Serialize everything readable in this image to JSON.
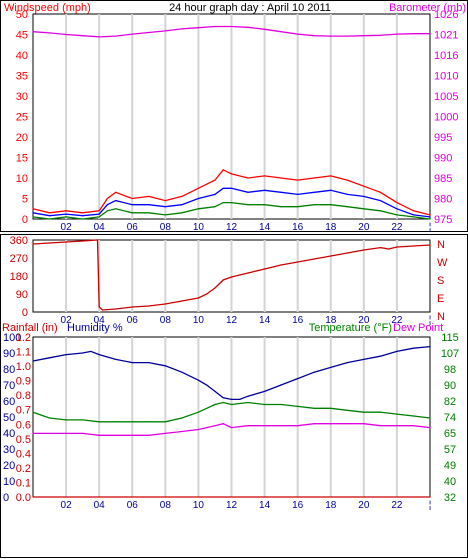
{
  "chart_data": [
    {
      "type": "line",
      "title": "24 hour graph day : April 10 2011",
      "ylabel_left": "Windspeed (mph)",
      "ylabel_right": "Barometer (mb)",
      "x_ticks": [
        "02",
        "04",
        "06",
        "08",
        "10",
        "12",
        "14",
        "16",
        "18",
        "20",
        "22",
        "¦"
      ],
      "x_range": [
        0,
        24
      ],
      "left_axis": {
        "range": [
          0,
          50
        ],
        "ticks": [
          "0",
          "5",
          "10",
          "15",
          "20",
          "25",
          "30",
          "35",
          "40",
          "45",
          "50"
        ]
      },
      "right_axis": {
        "range": [
          975,
          1026
        ],
        "ticks": [
          "975",
          "980",
          "985",
          "990",
          "995",
          "1000",
          "1005",
          "1010",
          "1016",
          "1021",
          "1026"
        ]
      },
      "grid": true,
      "series": [
        {
          "axis": "right",
          "color": "#e000e0",
          "x": [
            0,
            1,
            2,
            3,
            4,
            5,
            6,
            7,
            8,
            9,
            10,
            11,
            12,
            13,
            14,
            15,
            16,
            17,
            18,
            19,
            20,
            21,
            22,
            23,
            24
          ],
          "values": [
            1021.6,
            1021.3,
            1020.9,
            1020.6,
            1020.3,
            1020.5,
            1021.0,
            1021.4,
            1021.8,
            1022.3,
            1022.6,
            1022.9,
            1022.9,
            1022.7,
            1022.2,
            1021.6,
            1021.0,
            1020.6,
            1020.5,
            1020.5,
            1020.6,
            1020.7,
            1021.0,
            1021.1,
            1021.1
          ]
        },
        {
          "axis": "left",
          "color": "#ff0000",
          "x": [
            0,
            1,
            2,
            3,
            4,
            4.5,
            5,
            6,
            7,
            8,
            9,
            10,
            11,
            11.5,
            12,
            13,
            14,
            15,
            16,
            17,
            18,
            19,
            20,
            21,
            22,
            23,
            24
          ],
          "values": [
            2.5,
            1.5,
            2.0,
            1.5,
            2.0,
            5.0,
            6.5,
            5.0,
            5.5,
            4.5,
            5.5,
            7.5,
            9.5,
            12.0,
            11.0,
            10.0,
            10.5,
            10.0,
            9.5,
            10.0,
            10.5,
            9.5,
            8.0,
            6.5,
            4.0,
            2.0,
            1.0
          ]
        },
        {
          "axis": "left",
          "color": "#0000ff",
          "x": [
            0,
            1,
            2,
            3,
            4,
            4.5,
            5,
            6,
            7,
            8,
            9,
            10,
            11,
            11.5,
            12,
            13,
            14,
            15,
            16,
            17,
            18,
            19,
            20,
            21,
            22,
            23,
            24
          ],
          "values": [
            1.5,
            0.8,
            1.2,
            0.8,
            1.2,
            3.5,
            4.5,
            3.5,
            3.5,
            3.0,
            3.5,
            5.0,
            6.0,
            7.5,
            7.5,
            6.5,
            7.0,
            6.5,
            6.0,
            6.5,
            7.0,
            6.0,
            5.5,
            4.5,
            2.5,
            1.0,
            0.5
          ]
        },
        {
          "axis": "left",
          "color": "#008000",
          "x": [
            0,
            1,
            2,
            3,
            4,
            4.5,
            5,
            6,
            7,
            8,
            9,
            10,
            11,
            11.5,
            12,
            13,
            14,
            15,
            16,
            17,
            18,
            19,
            20,
            21,
            22,
            23,
            24
          ],
          "values": [
            0.5,
            0.0,
            0.5,
            0.0,
            0.5,
            2.0,
            2.5,
            1.5,
            1.5,
            1.0,
            1.5,
            2.5,
            3.0,
            4.0,
            4.0,
            3.5,
            3.5,
            3.0,
            3.0,
            3.5,
            3.5,
            3.0,
            2.5,
            2.0,
            1.0,
            0.5,
            0.0
          ]
        }
      ]
    },
    {
      "type": "line",
      "title": "",
      "x_ticks": [
        "02",
        "04",
        "06",
        "08",
        "10",
        "12",
        "14",
        "16",
        "18",
        "20",
        "22",
        "¦"
      ],
      "x_range": [
        0,
        24
      ],
      "left_axis": {
        "range": [
          0,
          360
        ],
        "ticks": [
          "0",
          "90",
          "180",
          "270",
          "360"
        ]
      },
      "right_labels": [
        "N",
        "W",
        "S",
        "E",
        "N"
      ],
      "grid": true,
      "series": [
        {
          "axis": "left",
          "color": "#cc0000",
          "x": [
            0,
            1,
            2,
            3,
            3.9,
            4.0,
            4.2,
            5,
            6,
            7,
            8,
            9,
            10,
            10.5,
            11,
            11.5,
            12,
            13,
            14,
            15,
            16,
            17,
            18,
            19,
            20,
            21,
            21.5,
            22,
            23,
            24
          ],
          "values": [
            340,
            345,
            350,
            355,
            360,
            25,
            10,
            15,
            25,
            30,
            40,
            55,
            70,
            90,
            120,
            160,
            175,
            195,
            215,
            235,
            250,
            265,
            280,
            295,
            310,
            322,
            315,
            325,
            330,
            335
          ]
        }
      ]
    },
    {
      "type": "line",
      "title": "",
      "ylabel_left_1": "Rainfall (in)",
      "ylabel_left_2": "Humidity %",
      "ylabel_right_1": "Temperature (°F)",
      "ylabel_right_2": "Dew Point",
      "x_ticks": [
        "02",
        "04",
        "06",
        "08",
        "10",
        "12",
        "14",
        "16",
        "18",
        "20",
        "22",
        "¦"
      ],
      "x_range": [
        0,
        24
      ],
      "rain_axis": {
        "range": [
          0,
          1.2
        ],
        "ticks": [
          "0.0",
          "0.1",
          "0.2",
          "0.4",
          "0.5",
          "0.6",
          "0.7",
          "0.8",
          "0.9",
          "1.0",
          "1.1",
          "1.2"
        ]
      },
      "humidity_axis": {
        "range": [
          0,
          100
        ],
        "ticks": [
          "0",
          "10",
          "20",
          "30",
          "40",
          "50",
          "60",
          "70",
          "80",
          "90",
          "100"
        ]
      },
      "temperature_axis": {
        "range": [
          32,
          115
        ],
        "ticks": [
          "32",
          "40",
          "49",
          "57",
          "65",
          "74",
          "82",
          "90",
          "98",
          "107",
          "115"
        ]
      },
      "grid": true,
      "series": [
        {
          "axis": "humidity",
          "color": "#000099",
          "x": [
            0,
            1,
            2,
            3,
            3.5,
            4,
            5,
            6,
            7,
            8,
            9,
            10,
            10.5,
            11,
            11.5,
            12,
            12.5,
            13,
            14,
            15,
            16,
            17,
            18,
            19,
            20,
            21,
            22,
            23,
            24
          ],
          "values": [
            85,
            87,
            89,
            90,
            91,
            89,
            86,
            84,
            84,
            82,
            78,
            73,
            70,
            66,
            62,
            61,
            61,
            63,
            66,
            70,
            74,
            78,
            81,
            84,
            86,
            88,
            91,
            93,
            94
          ]
        },
        {
          "axis": "temperature",
          "color": "#008000",
          "x": [
            0,
            1,
            2,
            3,
            4,
            5,
            6,
            7,
            8,
            9,
            10,
            11,
            11.5,
            12,
            13,
            14,
            15,
            16,
            17,
            18,
            19,
            20,
            21,
            22,
            23,
            24
          ],
          "values": [
            76,
            73,
            72,
            72,
            71,
            71,
            71,
            71,
            71,
            73,
            76,
            80,
            81,
            80,
            81,
            80,
            80,
            79,
            78,
            78,
            77,
            76,
            76,
            75,
            74,
            73
          ]
        },
        {
          "axis": "temperature",
          "color": "#e000e0",
          "x": [
            0,
            1,
            2,
            3,
            4,
            5,
            6,
            7,
            8,
            9,
            10,
            11,
            11.5,
            12,
            13,
            14,
            15,
            16,
            17,
            18,
            19,
            20,
            21,
            22,
            23,
            24
          ],
          "values": [
            65,
            65,
            65,
            65,
            64,
            64,
            64,
            64,
            65,
            66,
            67,
            69,
            70,
            68,
            69,
            69,
            69,
            69,
            70,
            70,
            70,
            70,
            69,
            69,
            69,
            68
          ]
        },
        {
          "axis": "rain",
          "color": "#cc0000",
          "x": [
            0,
            24
          ],
          "values": [
            0.0,
            0.0
          ]
        }
      ]
    }
  ]
}
